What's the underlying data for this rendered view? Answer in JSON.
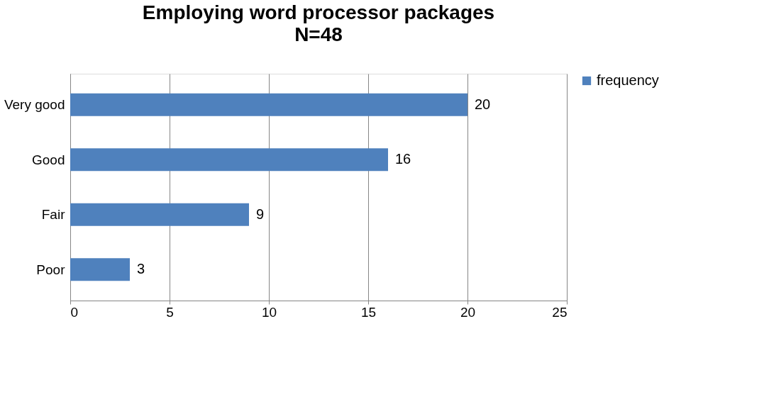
{
  "chart_data": {
    "type": "bar",
    "orientation": "horizontal",
    "title": "Employing word processor packages",
    "subtitle": "N=48",
    "categories": [
      "Very good",
      "Good",
      "Fair",
      "Poor"
    ],
    "series": [
      {
        "name": "frequency",
        "color": "#4f81bd",
        "values": [
          20,
          16,
          9,
          3
        ]
      }
    ],
    "xlim": [
      0,
      25
    ],
    "xticks": [
      0,
      5,
      10,
      15,
      20,
      25
    ],
    "grid": "x",
    "legend": "right",
    "data_labels": true
  }
}
